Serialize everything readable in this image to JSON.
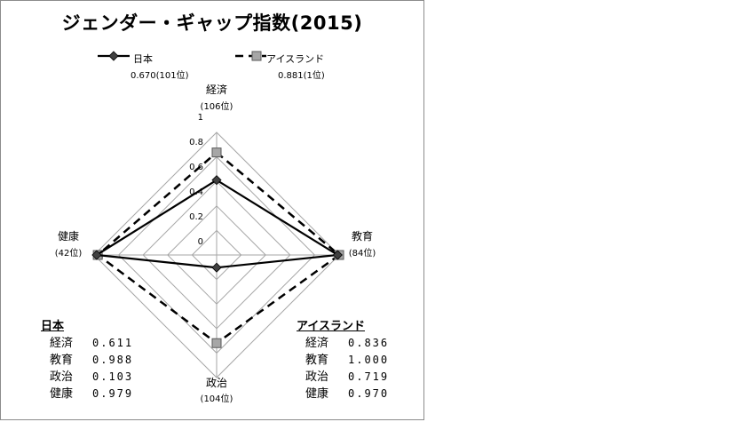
{
  "chart_data": {
    "type": "radar",
    "title": "ジェンダー・ギャップ指数(2015)",
    "axes": [
      {
        "label": "経済",
        "rank": "(106位)"
      },
      {
        "label": "教育",
        "rank": "(84位)"
      },
      {
        "label": "政治",
        "rank": "(104位)"
      },
      {
        "label": "健康",
        "rank": "(42位)"
      }
    ],
    "rlim": [
      0,
      1
    ],
    "ticks": [
      "0",
      "0.2",
      "0.4",
      "0.6",
      "0.8",
      "1"
    ],
    "grid": true,
    "legend_position": "top",
    "series": [
      {
        "name": "日本",
        "score_label": "0.670(101位)",
        "values": [
          0.611,
          0.988,
          0.103,
          0.979
        ],
        "color": "#000000",
        "line": "solid",
        "marker": "diamond"
      },
      {
        "name": "アイスランド",
        "score_label": "0.881(1位)",
        "values": [
          0.836,
          1.0,
          0.719,
          0.97
        ],
        "color": "#000000",
        "line": "dashed",
        "marker": "square",
        "marker_color": "#a6a6a6"
      }
    ],
    "tables": [
      {
        "title": "日本",
        "rows": [
          {
            "label": "経済",
            "value": "0.611"
          },
          {
            "label": "教育",
            "value": "0.988"
          },
          {
            "label": "政治",
            "value": "0.103"
          },
          {
            "label": "健康",
            "value": "0.979"
          }
        ]
      },
      {
        "title": "アイスランド",
        "rows": [
          {
            "label": "経済",
            "value": "0.836"
          },
          {
            "label": "教育",
            "value": "1.000"
          },
          {
            "label": "政治",
            "value": "0.719"
          },
          {
            "label": "健康",
            "value": "0.970"
          }
        ]
      }
    ]
  }
}
